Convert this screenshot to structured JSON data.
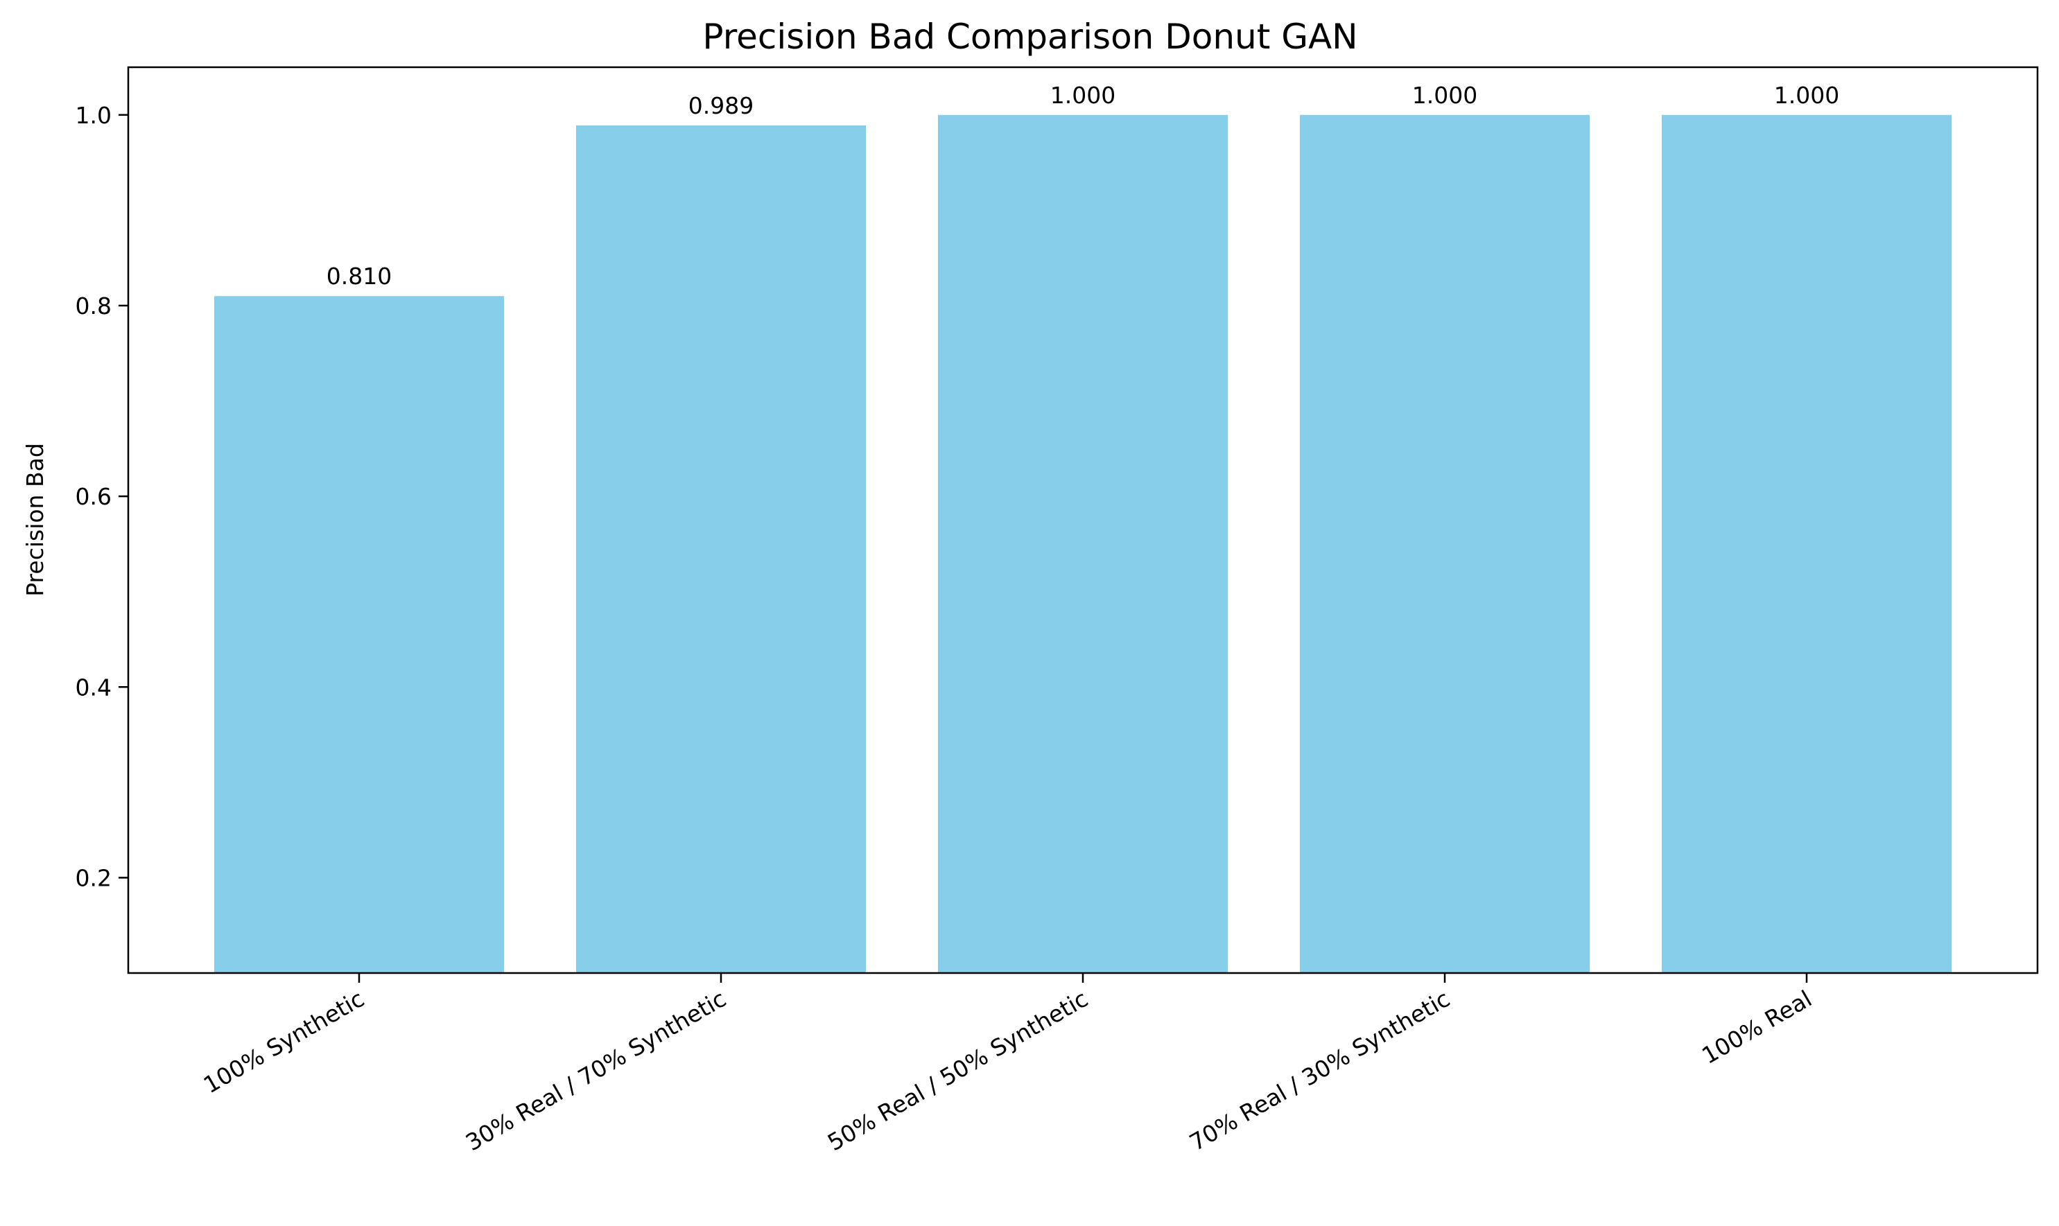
{
  "chart_data": {
    "type": "bar",
    "title": "Precision Bad Comparison Donut GAN",
    "xlabel": "",
    "ylabel": "Precision Bad",
    "categories": [
      "100% Synthetic",
      "30% Real / 70% Synthetic",
      "50% Real / 50% Synthetic",
      "70% Real / 30% Synthetic",
      "100% Real"
    ],
    "values": [
      0.81,
      0.989,
      1.0,
      1.0,
      1.0
    ],
    "value_labels": [
      "0.810",
      "0.989",
      "1.000",
      "1.000",
      "1.000"
    ],
    "ylim": [
      0.1,
      1.05
    ],
    "yticks": [
      0.2,
      0.4,
      0.6,
      0.8,
      1.0
    ],
    "ytick_labels": [
      "0.2",
      "0.4",
      "0.6",
      "0.8",
      "1.0"
    ],
    "bar_color": "#87CEEB",
    "grid": false,
    "legend": "none"
  }
}
